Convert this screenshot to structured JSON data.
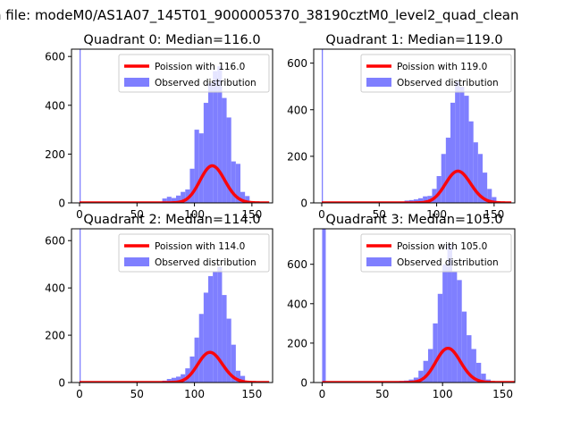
{
  "figure": {
    "suptitle": "n file: modeM0/AS1A07_145T01_9000005370_38190cztM0_level2_quad_clean"
  },
  "legend": {
    "observed_label": "Observed distribution"
  },
  "colors": {
    "poisson": "#ff0000",
    "histogram": "#7f7fff"
  },
  "chart_data": [
    {
      "type": "bar",
      "title": "Quadrant 0: Median=116.0",
      "poisson_label": "Poission with 116.0",
      "xticks": [
        0,
        50,
        100,
        150
      ],
      "yticks": [
        0,
        200,
        400,
        600
      ],
      "xlim": [
        -7,
        168
      ],
      "ylim": [
        0,
        630
      ],
      "poisson_mean": 116.0,
      "hist_bins": [
        [
          0,
          1,
          800
        ],
        [
          72,
          76,
          18
        ],
        [
          76,
          80,
          25
        ],
        [
          80,
          84,
          20
        ],
        [
          84,
          88,
          30
        ],
        [
          88,
          92,
          45
        ],
        [
          92,
          96,
          55
        ],
        [
          96,
          100,
          140
        ],
        [
          100,
          104,
          300
        ],
        [
          104,
          108,
          285
        ],
        [
          108,
          112,
          410
        ],
        [
          112,
          116,
          490
        ],
        [
          116,
          120,
          540
        ],
        [
          120,
          124,
          560
        ],
        [
          124,
          128,
          430
        ],
        [
          128,
          132,
          350
        ],
        [
          132,
          136,
          170
        ],
        [
          136,
          140,
          160
        ],
        [
          140,
          144,
          45
        ],
        [
          144,
          148,
          28
        ]
      ],
      "legend_position": "top-right"
    },
    {
      "type": "bar",
      "title": "Quadrant 1: Median=119.0",
      "poisson_label": "Poission with 119.0",
      "xticks": [
        0,
        50,
        100,
        150
      ],
      "yticks": [
        0,
        200,
        400,
        600
      ],
      "xlim": [
        -7,
        168
      ],
      "ylim": [
        0,
        660
      ],
      "poisson_mean": 119.0,
      "hist_bins": [
        [
          0,
          1,
          800
        ],
        [
          68,
          72,
          5
        ],
        [
          72,
          76,
          10
        ],
        [
          76,
          80,
          12
        ],
        [
          80,
          84,
          15
        ],
        [
          84,
          88,
          20
        ],
        [
          88,
          92,
          28
        ],
        [
          92,
          96,
          30
        ],
        [
          96,
          100,
          60
        ],
        [
          100,
          104,
          115
        ],
        [
          104,
          108,
          210
        ],
        [
          108,
          112,
          280
        ],
        [
          112,
          116,
          430
        ],
        [
          116,
          120,
          520
        ],
        [
          120,
          124,
          500
        ],
        [
          124,
          128,
          460
        ],
        [
          128,
          132,
          350
        ],
        [
          132,
          136,
          260
        ],
        [
          136,
          140,
          210
        ],
        [
          140,
          144,
          130
        ],
        [
          144,
          148,
          60
        ],
        [
          148,
          152,
          25
        ]
      ],
      "legend_position": "top-right"
    },
    {
      "type": "bar",
      "title": "Quadrant 2: Median=114.0",
      "poisson_label": "Poission with 114.0",
      "xticks": [
        0,
        50,
        100,
        150
      ],
      "yticks": [
        0,
        200,
        400,
        600
      ],
      "xlim": [
        -7,
        168
      ],
      "ylim": [
        0,
        650
      ],
      "poisson_mean": 114.0,
      "hist_bins": [
        [
          0,
          1,
          800
        ],
        [
          72,
          76,
          8
        ],
        [
          76,
          80,
          15
        ],
        [
          80,
          84,
          20
        ],
        [
          84,
          88,
          25
        ],
        [
          88,
          92,
          35
        ],
        [
          92,
          96,
          60
        ],
        [
          96,
          100,
          110
        ],
        [
          100,
          104,
          190
        ],
        [
          104,
          108,
          290
        ],
        [
          108,
          112,
          380
        ],
        [
          112,
          116,
          450
        ],
        [
          116,
          120,
          470
        ],
        [
          120,
          124,
          490
        ],
        [
          124,
          128,
          370
        ],
        [
          128,
          132,
          270
        ],
        [
          132,
          136,
          160
        ],
        [
          136,
          140,
          50
        ],
        [
          140,
          144,
          28
        ]
      ],
      "legend_position": "top-right"
    },
    {
      "type": "bar",
      "title": "Quadrant 3: Median=105.0",
      "poisson_label": "Poission with 105.0",
      "xticks": [
        0,
        50,
        100,
        150
      ],
      "yticks": [
        0,
        200,
        400,
        600
      ],
      "xlim": [
        -7,
        160
      ],
      "ylim": [
        0,
        780
      ],
      "poisson_mean": 105.0,
      "hist_bins": [
        [
          0,
          3,
          800
        ],
        [
          56,
          60,
          3
        ],
        [
          60,
          64,
          5
        ],
        [
          64,
          68,
          8
        ],
        [
          68,
          72,
          10
        ],
        [
          72,
          76,
          15
        ],
        [
          76,
          80,
          25
        ],
        [
          80,
          84,
          60
        ],
        [
          84,
          88,
          110
        ],
        [
          88,
          92,
          170
        ],
        [
          92,
          96,
          300
        ],
        [
          96,
          100,
          450
        ],
        [
          100,
          104,
          600
        ],
        [
          104,
          108,
          700
        ],
        [
          108,
          112,
          560
        ],
        [
          112,
          116,
          520
        ],
        [
          116,
          120,
          360
        ],
        [
          120,
          124,
          240
        ],
        [
          124,
          128,
          170
        ],
        [
          128,
          132,
          100
        ],
        [
          132,
          136,
          45
        ],
        [
          136,
          140,
          15
        ]
      ],
      "legend_position": "top-right"
    }
  ]
}
